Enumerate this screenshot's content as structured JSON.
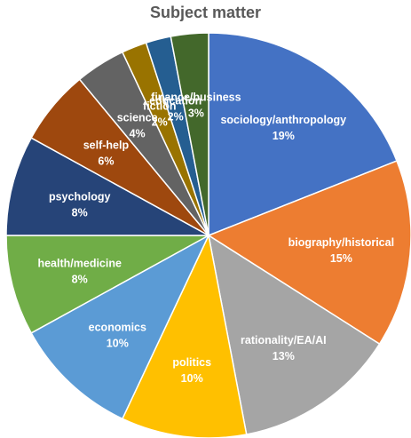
{
  "chart_data": {
    "type": "pie",
    "title": "Subject matter",
    "slices": [
      {
        "label": "sociology/anthropology",
        "value": 19,
        "value_label": "19%",
        "color": "#4472C4"
      },
      {
        "label": "biography/historical",
        "value": 15,
        "value_label": "15%",
        "color": "#ED7D31"
      },
      {
        "label": "rationality/EA/AI",
        "value": 13,
        "value_label": "13%",
        "color": "#A5A5A5"
      },
      {
        "label": "politics",
        "value": 10,
        "value_label": "10%",
        "color": "#FFC000"
      },
      {
        "label": "economics",
        "value": 10,
        "value_label": "10%",
        "color": "#5B9BD5"
      },
      {
        "label": "health/medicine",
        "value": 8,
        "value_label": "8%",
        "color": "#70AD47"
      },
      {
        "label": "psychology",
        "value": 8,
        "value_label": "8%",
        "color": "#264478"
      },
      {
        "label": "self-help",
        "value": 6,
        "value_label": "6%",
        "color": "#9E480E"
      },
      {
        "label": "science",
        "value": 4,
        "value_label": "4%",
        "color": "#636363"
      },
      {
        "label": "fiction",
        "value": 2,
        "value_label": "2%",
        "color": "#997300"
      },
      {
        "label": "education",
        "value": 2,
        "value_label": "2%",
        "color": "#255E91"
      },
      {
        "label": "finance/business",
        "value": 3,
        "value_label": "3%",
        "color": "#43682B"
      }
    ],
    "legend": "none",
    "data_labels": "inside"
  }
}
